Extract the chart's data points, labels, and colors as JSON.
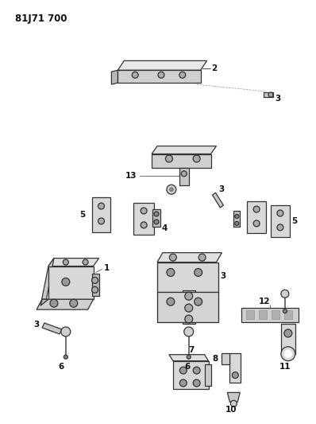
{
  "title": "81J71 700",
  "bg_color": "#ffffff",
  "ec": "#333333",
  "fc_light": "#d8d8d8",
  "fc_mid": "#c0c0c0",
  "fc_dark": "#aaaaaa"
}
